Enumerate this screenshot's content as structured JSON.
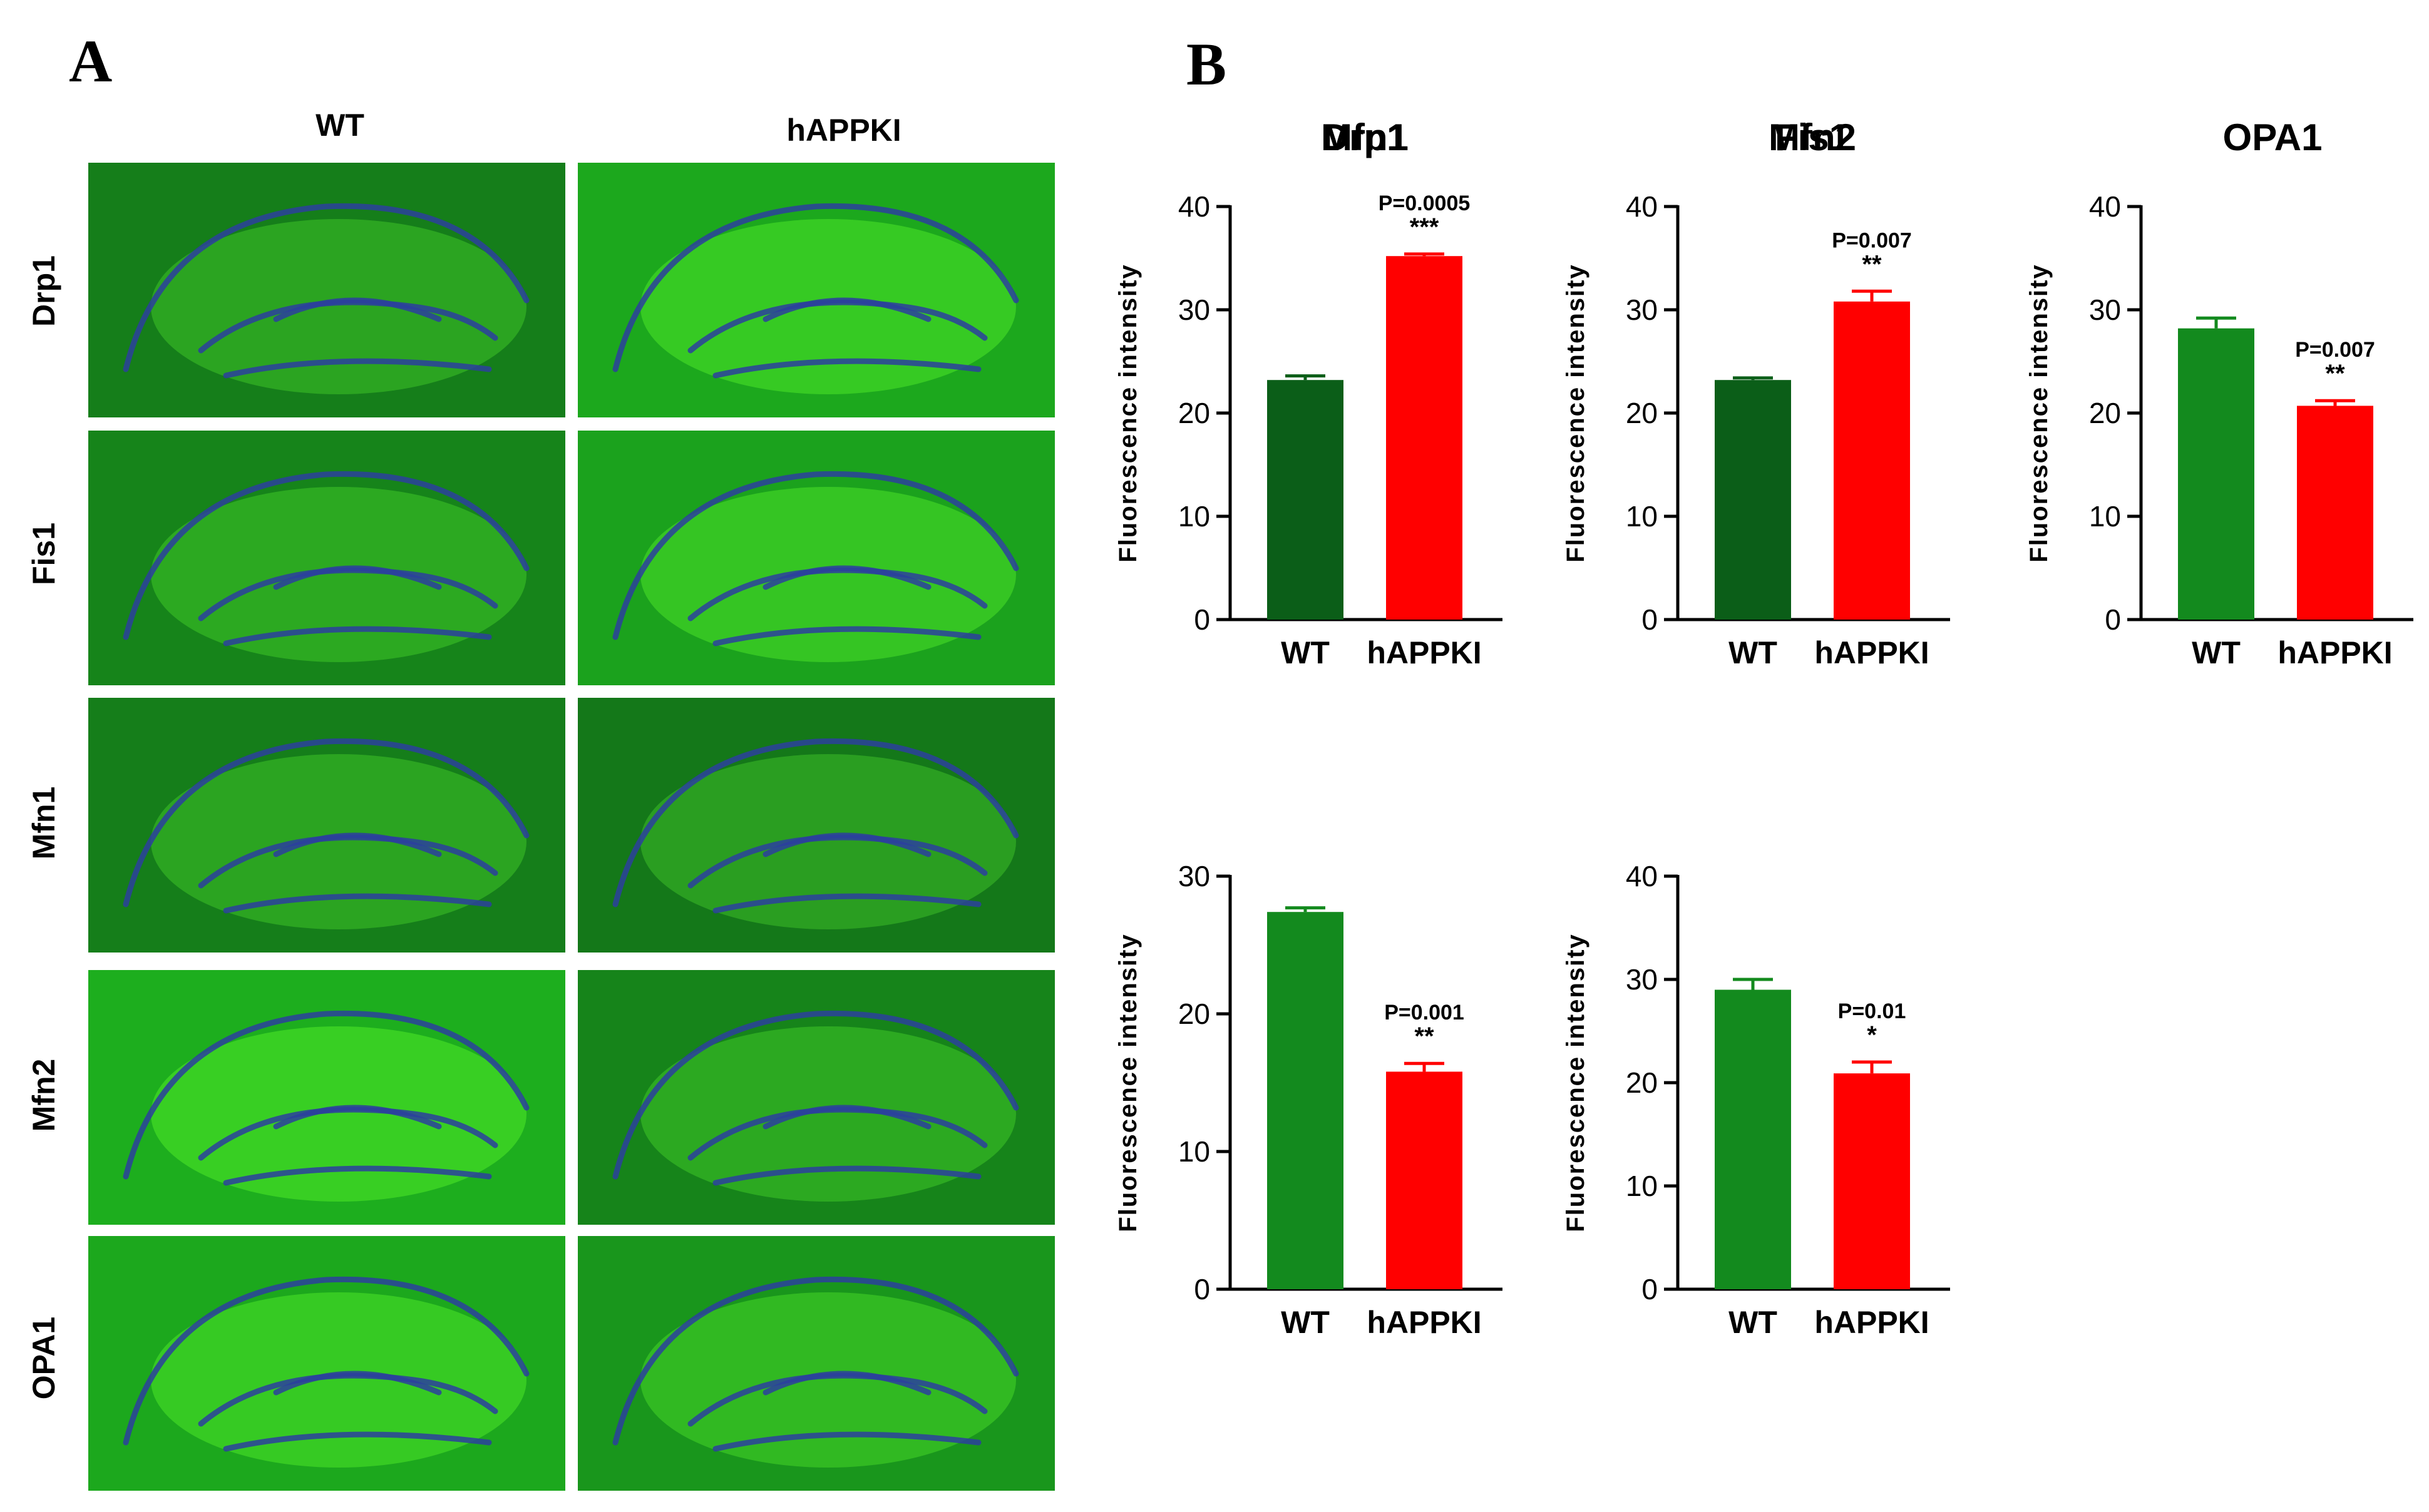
{
  "panel_labels": {
    "a": "A",
    "b": "B"
  },
  "micrographs": {
    "columns": [
      "WT",
      "hAPPKI"
    ],
    "rows": [
      "Drp1",
      "Fis1",
      "Mfn1",
      "Mfn2",
      "OPA1"
    ]
  },
  "colors": {
    "wt_dark": "#0b5e18",
    "wt": "#138a1e",
    "happki": "#ff0000"
  },
  "chart_data": [
    {
      "type": "bar",
      "title": "Drp1",
      "ylabel": "Fluorescence intensity",
      "xlabel": "",
      "ylim": [
        0,
        40
      ],
      "yticks": [
        0,
        10,
        20,
        30,
        40
      ],
      "categories": [
        "WT",
        "hAPPKI"
      ],
      "values": [
        23.2,
        35.2
      ],
      "errors": [
        0.4,
        0.2
      ],
      "colors": [
        "#0b5e18",
        "#ff0000"
      ],
      "p_value": "P=0.0005",
      "stars": "***"
    },
    {
      "type": "bar",
      "title": "Fis1",
      "ylabel": "Fluorescence intensity",
      "xlabel": "",
      "ylim": [
        0,
        40
      ],
      "yticks": [
        0,
        10,
        20,
        30,
        40
      ],
      "categories": [
        "WT",
        "hAPPKI"
      ],
      "values": [
        23.2,
        30.8
      ],
      "errors": [
        0.2,
        1.0
      ],
      "colors": [
        "#0b5e18",
        "#ff0000"
      ],
      "p_value": "P=0.007",
      "stars": "**"
    },
    {
      "type": "bar",
      "title": "OPA1",
      "ylabel": "Fluorescence intensity",
      "xlabel": "",
      "ylim": [
        0,
        40
      ],
      "yticks": [
        0,
        10,
        20,
        30,
        40
      ],
      "categories": [
        "WT",
        "hAPPKI"
      ],
      "values": [
        28.2,
        20.7
      ],
      "errors": [
        1.0,
        0.5
      ],
      "colors": [
        "#138a1e",
        "#ff0000"
      ],
      "p_value": "P=0.007",
      "stars": "**"
    },
    {
      "type": "bar",
      "title": "Mfn1",
      "ylabel": "Fluorescence intensity",
      "xlabel": "",
      "ylim": [
        0,
        30
      ],
      "yticks": [
        0,
        10,
        20,
        30
      ],
      "categories": [
        "WT",
        "hAPPKI"
      ],
      "values": [
        27.4,
        15.8
      ],
      "errors": [
        0.3,
        0.6
      ],
      "colors": [
        "#138a1e",
        "#ff0000"
      ],
      "p_value": "P=0.001",
      "stars": "**"
    },
    {
      "type": "bar",
      "title": "Mfn2",
      "ylabel": "Fluorescence intensity",
      "xlabel": "",
      "ylim": [
        0,
        40
      ],
      "yticks": [
        0,
        10,
        20,
        30,
        40
      ],
      "categories": [
        "WT",
        "hAPPKI"
      ],
      "values": [
        29.0,
        20.9
      ],
      "errors": [
        1.0,
        1.1
      ],
      "colors": [
        "#138a1e",
        "#ff0000"
      ],
      "p_value": "P=0.01",
      "stars": "*"
    }
  ]
}
